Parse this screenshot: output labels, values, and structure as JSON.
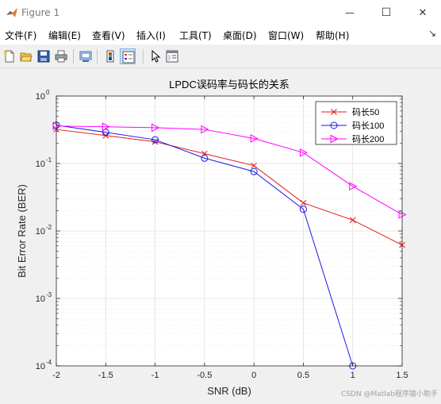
{
  "window": {
    "title": "Figure 1",
    "controls": {
      "minimize": "—",
      "maximize": "☐",
      "close": "✕"
    }
  },
  "menu": {
    "items": [
      "文件(F)",
      "编辑(E)",
      "查看(V)",
      "插入(I)",
      "工具(T)",
      "桌面(D)",
      "窗口(W)",
      "帮助(H)"
    ],
    "dock_arrow": "↘"
  },
  "toolbar": {
    "icons": [
      "new-figure-icon",
      "open-file-icon",
      "save-icon",
      "print-icon",
      "print-preview-icon",
      "colorbar-icon",
      "legend-icon",
      "pointer-icon",
      "property-inspector-icon"
    ]
  },
  "chart_data": {
    "type": "line",
    "title": "LPDC误码率与码长的关系",
    "xlabel": "SNR (dB)",
    "ylabel": "Bit Error Rate (BER)",
    "xlim": [
      -2,
      1.5
    ],
    "ylim": [
      0.0001,
      1
    ],
    "yscale": "log",
    "grid": true,
    "minor_grid": true,
    "legend_position": "top-right",
    "x": [
      -2,
      -1.5,
      -1,
      -0.5,
      0,
      0.5,
      1,
      1.5
    ],
    "xticks": [
      "-2",
      "-1.5",
      "-1",
      "-0.5",
      "0",
      "0.5",
      "1",
      "1.5"
    ],
    "yticks": [
      {
        "base": "10",
        "exp": "0",
        "value": 1
      },
      {
        "base": "10",
        "exp": "-1",
        "value": 0.1
      },
      {
        "base": "10",
        "exp": "-2",
        "value": 0.01
      },
      {
        "base": "10",
        "exp": "-3",
        "value": 0.001
      },
      {
        "base": "10",
        "exp": "-4",
        "value": 0.0001
      }
    ],
    "series": [
      {
        "name": "码长50",
        "color": "#e41a1a",
        "marker": "x",
        "x": [
          -2,
          -1.5,
          -1,
          -0.5,
          0,
          0.5,
          1,
          1.5
        ],
        "values": [
          0.32,
          0.26,
          0.21,
          0.14,
          0.093,
          0.026,
          0.0145,
          0.0062
        ]
      },
      {
        "name": "码长100",
        "color": "#1a1ae6",
        "marker": "o",
        "x": [
          -2,
          -1.5,
          -1,
          -0.5,
          0,
          0.5,
          1
        ],
        "values": [
          0.37,
          0.29,
          0.225,
          0.12,
          0.076,
          0.021,
          0.0001
        ]
      },
      {
        "name": "码长200",
        "color": "#ff00ff",
        "marker": ">",
        "x": [
          -2,
          -1.5,
          -1,
          -0.5,
          0,
          0.5,
          1,
          1.5
        ],
        "values": [
          0.36,
          0.35,
          0.34,
          0.32,
          0.235,
          0.145,
          0.046,
          0.0175
        ]
      }
    ]
  },
  "watermark": "CSDN @Matlab程序猿小助手"
}
